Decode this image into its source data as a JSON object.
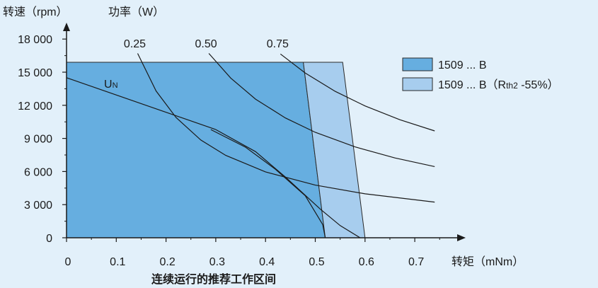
{
  "chart_data": {
    "type": "area",
    "y_axis_title": "转速（rpm）",
    "power_title": "功率（W）",
    "x_axis_title": "转矩（mNm）",
    "caption": "连续运行的推荐工作区间",
    "xlim": [
      0,
      0.75
    ],
    "ylim": [
      0,
      18000
    ],
    "x_ticks": [
      0,
      0.1,
      0.2,
      0.3,
      0.4,
      0.5,
      0.6,
      0.7
    ],
    "x_tick_labels": [
      "0",
      "0.1",
      "0.2",
      "0.3",
      "0.4",
      "0.5",
      "0.6",
      "0.7"
    ],
    "y_ticks": [
      0,
      3000,
      6000,
      9000,
      12000,
      15000,
      18000
    ],
    "y_tick_labels": [
      "0",
      "3 000",
      "6 000",
      "9 000",
      "12 000",
      "15 000",
      "18 000"
    ],
    "regions": [
      {
        "name": "1509 ... B",
        "color": "#66aee0",
        "points": [
          [
            0,
            0
          ],
          [
            0,
            15900
          ],
          [
            0.476,
            15900
          ],
          [
            0.52,
            0
          ]
        ]
      },
      {
        "name": "1509 ... B（Rth2 -55%）",
        "color": "#a7cdee",
        "points": [
          [
            0.476,
            15900
          ],
          [
            0.555,
            15900
          ],
          [
            0.6,
            0
          ],
          [
            0.52,
            0
          ]
        ]
      }
    ],
    "legend": [
      {
        "label": "1509 ... B",
        "color": "#66aee0"
      },
      {
        "label_main": "1509 ... B（R",
        "label_sub": "th2",
        "label_rest": " -55%）",
        "color": "#a7cdee"
      }
    ],
    "un_line": {
      "label": "U",
      "label_sub": "N",
      "points": [
        [
          0,
          14500
        ],
        [
          0.3,
          9800
        ]
      ]
    },
    "torque_curves": [
      {
        "points": [
          [
            0.29,
            9800
          ],
          [
            0.36,
            8200
          ],
          [
            0.42,
            6200
          ],
          [
            0.48,
            3800
          ],
          [
            0.515,
            1200
          ],
          [
            0.52,
            0
          ]
        ]
      },
      {
        "points": [
          [
            0.3,
            9800
          ],
          [
            0.38,
            7800
          ],
          [
            0.44,
            5500
          ],
          [
            0.51,
            2600
          ],
          [
            0.55,
            1100
          ],
          [
            0.59,
            0
          ]
        ]
      }
    ],
    "power_curves": [
      {
        "label": "0.25",
        "points": [
          [
            0.143,
            16700
          ],
          [
            0.18,
            13300
          ],
          [
            0.22,
            10900
          ],
          [
            0.27,
            8850
          ],
          [
            0.32,
            7460
          ],
          [
            0.4,
            5970
          ],
          [
            0.5,
            4770
          ],
          [
            0.6,
            3980
          ],
          [
            0.74,
            3230
          ]
        ]
      },
      {
        "label": "0.50",
        "points": [
          [
            0.286,
            16700
          ],
          [
            0.33,
            14470
          ],
          [
            0.38,
            12560
          ],
          [
            0.44,
            10850
          ],
          [
            0.5,
            9550
          ],
          [
            0.58,
            8230
          ],
          [
            0.66,
            7230
          ],
          [
            0.74,
            6450
          ]
        ]
      },
      {
        "label": "0.75",
        "points": [
          [
            0.43,
            16650
          ],
          [
            0.48,
            14920
          ],
          [
            0.54,
            13260
          ],
          [
            0.6,
            11940
          ],
          [
            0.67,
            10690
          ],
          [
            0.74,
            9680
          ]
        ]
      }
    ]
  }
}
